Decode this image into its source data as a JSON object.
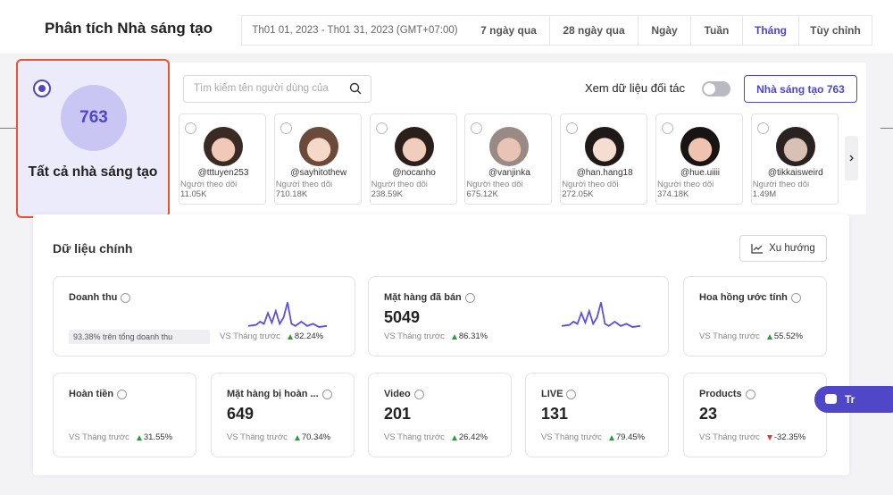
{
  "header": {
    "title": "Phân tích Nhà sáng tạo",
    "date_range": "Th01 01, 2023 - Th01 31, 2023 (GMT+07:00)",
    "tabs": [
      "7 ngày qua",
      "28 ngày qua",
      "Ngày",
      "Tuần",
      "Tháng",
      "Tùy chỉnh"
    ]
  },
  "all_creators": {
    "count": "763",
    "label": "Tất cả nhà sáng tạo"
  },
  "search_placeholder": "Tìm kiếm tên người dùng của",
  "partner_toggle": "Xem dữ liệu đối tác",
  "creators_button": "Nhà sáng tạo 763",
  "followers_label": "Người theo dõi",
  "creators": [
    {
      "handle": "@tttuyen253",
      "followers": "11.05K"
    },
    {
      "handle": "@sayhitothew",
      "followers": "710.18K"
    },
    {
      "handle": "@nocanho",
      "followers": "238.59K"
    },
    {
      "handle": "@vanjinka",
      "followers": "675.12K"
    },
    {
      "handle": "@han.hang18",
      "followers": "272.05K"
    },
    {
      "handle": "@hue.uiiii",
      "followers": "374.18K"
    },
    {
      "handle": "@tikkaisweird",
      "followers": "1.49M"
    }
  ],
  "main": {
    "title": "Dữ liệu chính",
    "trend_button": "Xu hướng",
    "compare_label": "VS Tháng trước",
    "metrics": [
      {
        "name": "Doanh thu",
        "share": "93.38% trên tổng doanh thu",
        "change": "82.24%",
        "trend": "up",
        "sparkline": true
      },
      {
        "name": "Mặt hàng đã bán",
        "value": "5049",
        "change": "86.31%",
        "trend": "up",
        "sparkline": true
      },
      {
        "name": "Hoa hồng ước tính",
        "change": "55.52%",
        "trend": "up"
      },
      {
        "name": "Hoàn tiền",
        "change": "31.55%",
        "trend": "up"
      },
      {
        "name": "Mặt hàng bị hoàn ...",
        "value": "649",
        "change": "70.34%",
        "trend": "up"
      },
      {
        "name": "Video",
        "value": "201",
        "change": "26.42%",
        "trend": "up"
      },
      {
        "name": "LIVE",
        "value": "131",
        "change": "79.45%",
        "trend": "up"
      },
      {
        "name": "Products",
        "value": "23",
        "change": "-32.35%",
        "trend": "down"
      }
    ]
  },
  "chat_button": "Tr"
}
